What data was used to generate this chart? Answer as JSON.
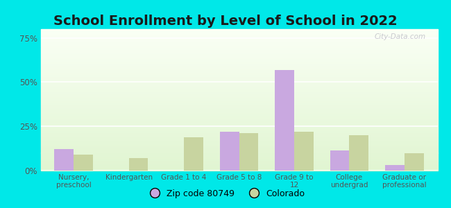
{
  "title": "School Enrollment by Level of School in 2022",
  "categories": [
    "Nursery,\npreschool",
    "Kindergarten",
    "Grade 1 to 4",
    "Grade 5 to 8",
    "Grade 9 to\n12",
    "College\nundergrad",
    "Graduate or\nprofessional"
  ],
  "zip_values": [
    12.0,
    0.0,
    0.0,
    22.0,
    57.0,
    11.5,
    3.0
  ],
  "co_values": [
    9.0,
    7.0,
    19.0,
    21.0,
    22.0,
    20.0,
    10.0
  ],
  "zip_color": "#c9a8e0",
  "co_color": "#c8d4a0",
  "ylim": [
    0,
    80
  ],
  "yticks": [
    0,
    25,
    50,
    75
  ],
  "ytick_labels": [
    "0%",
    "25%",
    "50%",
    "75%"
  ],
  "background_color": "#00e8e8",
  "title_fontsize": 14,
  "legend_label_zip": "Zip code 80749",
  "legend_label_co": "Colorado",
  "watermark": "City-Data.com",
  "bar_width": 0.35,
  "grid_color": "#ffffff",
  "tick_color": "#555555",
  "title_color": "#1a1a1a"
}
